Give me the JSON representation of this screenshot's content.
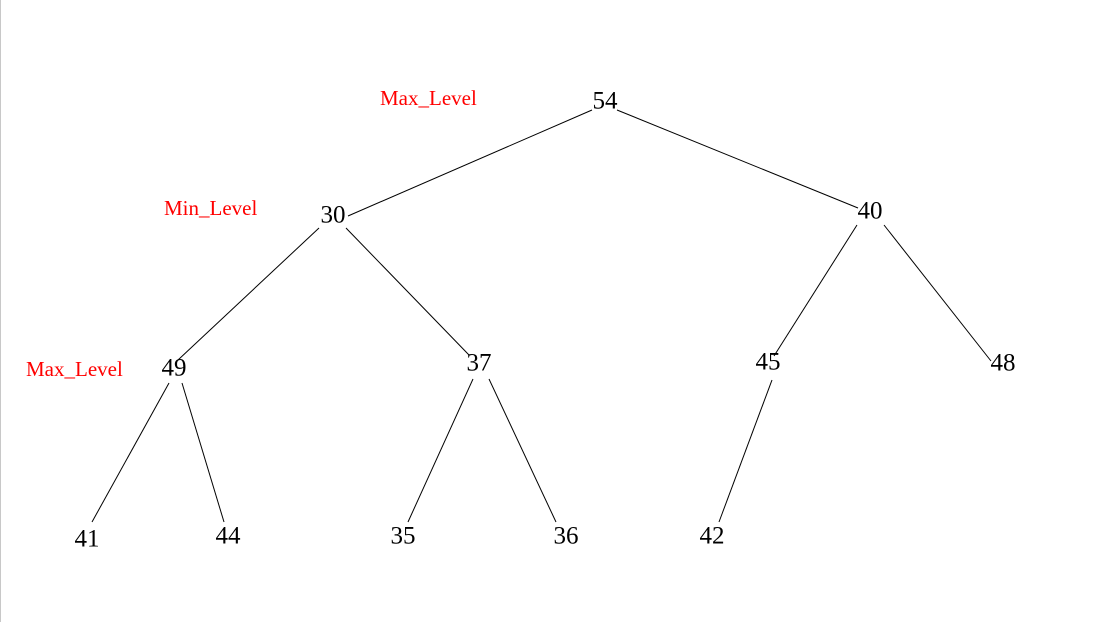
{
  "diagram": {
    "nodes": [
      {
        "id": "n54",
        "label": "54"
      },
      {
        "id": "n30",
        "label": "30"
      },
      {
        "id": "n40",
        "label": "40"
      },
      {
        "id": "n49",
        "label": "49"
      },
      {
        "id": "n37",
        "label": "37"
      },
      {
        "id": "n45",
        "label": "45"
      },
      {
        "id": "n48",
        "label": "48"
      },
      {
        "id": "n41",
        "label": "41"
      },
      {
        "id": "n44",
        "label": "44"
      },
      {
        "id": "n35",
        "label": "35"
      },
      {
        "id": "n36",
        "label": "36"
      },
      {
        "id": "n42",
        "label": "42"
      }
    ],
    "edges": [
      {
        "from": "n54",
        "to": "n30"
      },
      {
        "from": "n54",
        "to": "n40"
      },
      {
        "from": "n30",
        "to": "n49"
      },
      {
        "from": "n30",
        "to": "n37"
      },
      {
        "from": "n40",
        "to": "n45"
      },
      {
        "from": "n40",
        "to": "n48"
      },
      {
        "from": "n49",
        "to": "n41"
      },
      {
        "from": "n49",
        "to": "n44"
      },
      {
        "from": "n37",
        "to": "n35"
      },
      {
        "from": "n37",
        "to": "n36"
      },
      {
        "from": "n45",
        "to": "n42"
      }
    ],
    "level_labels": [
      {
        "id": "level-0",
        "text": "Max_Level"
      },
      {
        "id": "level-1",
        "text": "Min_Level"
      },
      {
        "id": "level-2",
        "text": "Max_Level"
      }
    ],
    "colors": {
      "node_text": "#000000",
      "level_text": "#ff0000",
      "edge": "#000000"
    }
  }
}
